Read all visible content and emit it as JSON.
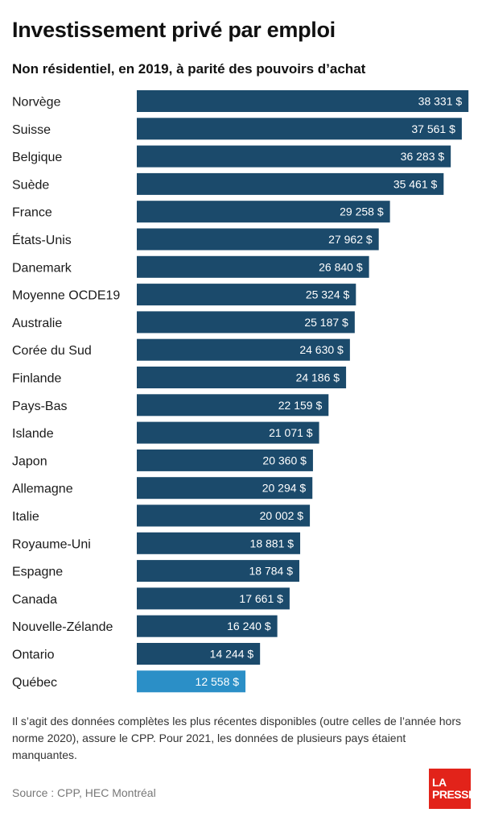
{
  "title": "Investissement privé par emploi",
  "subtitle": "Non résidentiel, en 2019, à parité des pouvoirs d’achat",
  "chart_data": {
    "type": "bar",
    "orientation": "horizontal",
    "categories": [
      "Norvège",
      "Suisse",
      "Belgique",
      "Suède",
      "France",
      "États-Unis",
      "Danemark",
      "Moyenne OCDE19",
      "Australie",
      "Corée du Sud",
      "Finlande",
      "Pays-Bas",
      "Islande",
      "Japon",
      "Allemagne",
      "Italie",
      "Royaume-Uni",
      "Espagne",
      "Canada",
      "Nouvelle-Zélande",
      "Ontario",
      "Québec"
    ],
    "values": [
      38331,
      37561,
      36283,
      35461,
      29258,
      27962,
      26840,
      25324,
      25187,
      24630,
      24186,
      22159,
      21071,
      20360,
      20294,
      20002,
      18881,
      18784,
      17661,
      16240,
      14244,
      12558
    ],
    "labels": [
      "38 331 $",
      "37 561 $",
      "36 283 $",
      "35 461 $",
      "29 258 $",
      "27 962 $",
      "26 840 $",
      "25 324 $",
      "25 187 $",
      "24 630 $",
      "24 186 $",
      "22 159 $",
      "21 071 $",
      "20 360 $",
      "20 294 $",
      "20 002 $",
      "18 881 $",
      "18 784 $",
      "17 661 $",
      "16 240 $",
      "14 244 $",
      "12 558 $"
    ],
    "highlight": "Québec",
    "bar_color": "#1b4a6b",
    "highlight_color": "#2b8fc7",
    "xlim": [
      0,
      38500
    ]
  },
  "note": "Il s’agit des données complètes les plus récentes disponibles (outre celles de l’année hors norme 2020), assure le CPP. Pour 2021, les données de plusieurs pays étaient manquantes.",
  "source": "Source : CPP, HEC Montréal",
  "logo": {
    "line1": "LA",
    "line2": "PRESSE",
    "color": "#e2231a"
  }
}
